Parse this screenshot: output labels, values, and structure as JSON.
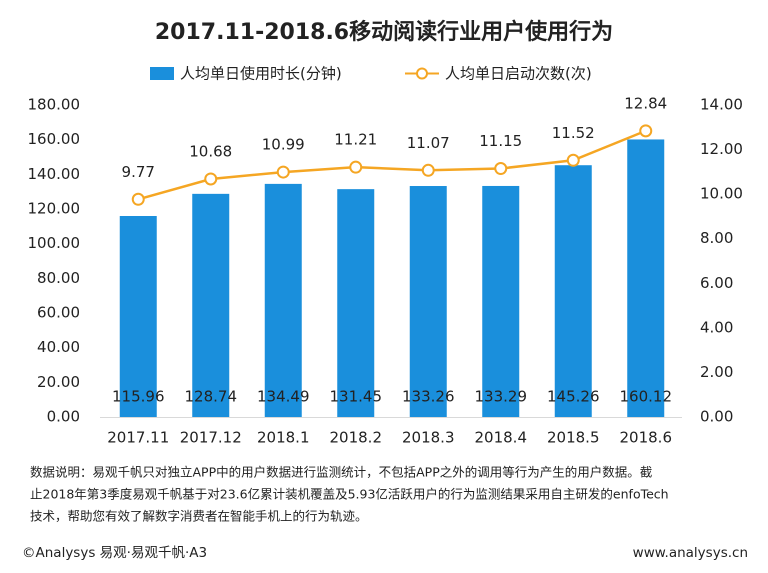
{
  "chart_data": {
    "type": "bar-line",
    "title": "2017.11-2018.6移动阅读行业用户使用行为",
    "categories": [
      "2017.11",
      "2017.12",
      "2018.1",
      "2018.2",
      "2018.3",
      "2018.4",
      "2018.5",
      "2018.6"
    ],
    "series": [
      {
        "name": "人均单日使用时长(分钟)",
        "type": "bar",
        "color": "#1a8fdc",
        "axis": "y",
        "values": [
          115.96,
          128.74,
          134.49,
          131.45,
          133.26,
          133.29,
          145.26,
          160.12
        ]
      },
      {
        "name": "人均单日启动次数(次)",
        "type": "line",
        "color": "#f5a623",
        "axis": "y2",
        "values": [
          9.77,
          10.68,
          10.99,
          11.21,
          11.07,
          11.15,
          11.52,
          12.84
        ]
      }
    ],
    "ylim": [
      0,
      180
    ],
    "yticks": [
      {
        "value": 0,
        "label": "0.00"
      },
      {
        "value": 20,
        "label": "20.00"
      },
      {
        "value": 40,
        "label": "40.00"
      },
      {
        "value": 60,
        "label": "60.00"
      },
      {
        "value": 80,
        "label": "80.00"
      },
      {
        "value": 100,
        "label": "100.00"
      },
      {
        "value": 120,
        "label": "120.00"
      },
      {
        "value": 140,
        "label": "140.00"
      },
      {
        "value": 160,
        "label": "160.00"
      },
      {
        "value": 180,
        "label": "180.00"
      }
    ],
    "y2lim": [
      0,
      14
    ],
    "y2ticks": [
      {
        "value": 0,
        "label": "0.00"
      },
      {
        "value": 2,
        "label": "2.00"
      },
      {
        "value": 4,
        "label": "4.00"
      },
      {
        "value": 6,
        "label": "6.00"
      },
      {
        "value": 8,
        "label": "8.00"
      },
      {
        "value": 10,
        "label": "10.00"
      },
      {
        "value": 12,
        "label": "12.00"
      },
      {
        "value": 14,
        "label": "14.00"
      }
    ],
    "grid": false,
    "legend": "top"
  },
  "footnote": {
    "lines": [
      "数据说明：易观千帆只对独立APP中的用户数据进行监测统计，不包括APP之外的调用等行为产生的用户数据。截",
      "止2018年第3季度易观千帆基于对23.6亿累计装机覆盖及5.93亿活跃用户的行为监测结果采用自主研发的enfoTech",
      "技术，帮助您有效了解数字消费者在智能手机上的行为轨迹。"
    ]
  },
  "footer": {
    "source": "©Analysys 易观·易观千帆·A3",
    "website": "www.analysys.cn"
  }
}
